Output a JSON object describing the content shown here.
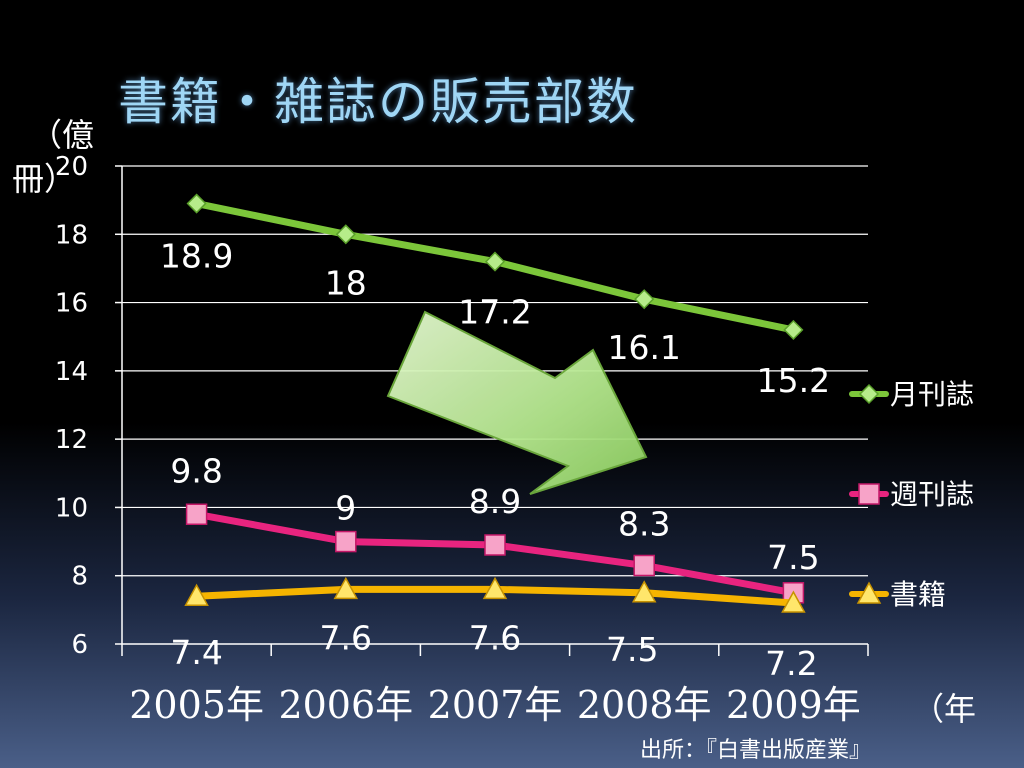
{
  "title": "書籍・雑誌の販売部数",
  "source": "出所：『白書出版産業』",
  "colors": {
    "background": "#000000",
    "title": "#9fd6f5",
    "monthly": "#7cc63a",
    "weekly": "#e8247f",
    "books": "#f5b400",
    "arrow": "#a8e07a"
  },
  "chart_data": {
    "type": "line",
    "title": "書籍・雑誌の販売部数",
    "ylabel": "（億冊）",
    "xlabel": "（年）",
    "categories": [
      "2005年",
      "2006年",
      "2007年",
      "2008年",
      "2009年"
    ],
    "ylim": [
      6,
      20
    ],
    "yticks": [
      6,
      8,
      10,
      12,
      14,
      16,
      18,
      20
    ],
    "grid": true,
    "legend": "right",
    "series": [
      {
        "name": "月刊誌",
        "values": [
          18.9,
          18,
          17.2,
          16.1,
          15.2
        ],
        "labels": [
          "18.9",
          "18",
          "17.2",
          "16.1",
          "15.2"
        ],
        "marker": "diamond",
        "color": "#7cc63a"
      },
      {
        "name": "週刊誌",
        "values": [
          9.8,
          9,
          8.9,
          8.3,
          7.5
        ],
        "labels": [
          "9.8",
          "9",
          "8.9",
          "8.3",
          "7.5"
        ],
        "marker": "square",
        "color": "#e8247f"
      },
      {
        "name": "書籍",
        "values": [
          7.4,
          7.6,
          7.6,
          7.5,
          7.2
        ],
        "labels": [
          "7.4",
          "7.6",
          "7.6",
          "7.5",
          "7.2"
        ],
        "marker": "triangle",
        "color": "#f5b400"
      }
    ],
    "annotations": [
      {
        "type": "arrow",
        "direction": "down-right",
        "meaning": "decline"
      }
    ]
  }
}
